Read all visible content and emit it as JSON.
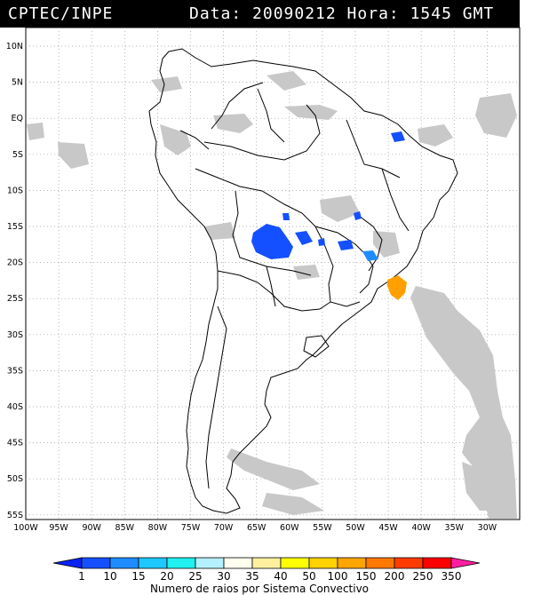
{
  "header": {
    "source": "CPTEC/INPE",
    "datetime": "Data: 20090212 Hora: 1545 GMT"
  },
  "map": {
    "lat_labels": [
      "10N",
      "5N",
      "EQ",
      "5S",
      "10S",
      "15S",
      "20S",
      "25S",
      "30S",
      "35S",
      "40S",
      "45S",
      "50S",
      "55S"
    ],
    "lon_labels": [
      "100W",
      "95W",
      "90W",
      "85W",
      "80W",
      "75W",
      "70W",
      "65W",
      "60W",
      "55W",
      "50W",
      "45W",
      "40W",
      "35W",
      "30W"
    ]
  },
  "colorbar": {
    "labels": [
      "1",
      "10",
      "15",
      "20",
      "25",
      "30",
      "35",
      "40",
      "50",
      "100",
      "150",
      "200",
      "250",
      "350"
    ],
    "colors": [
      "#0a23f5",
      "#1450ff",
      "#1e8cff",
      "#1ec8ff",
      "#20f0f0",
      "#b4f0ff",
      "#fffff0",
      "#fff0a0",
      "#ffff00",
      "#ffd200",
      "#ffa500",
      "#ff7800",
      "#ff3c00",
      "#ff0000",
      "#ff1ea0"
    ],
    "title": "Numero de raios por Sistema Convectivo"
  },
  "colors": {
    "cloud_gray": "#c8c8c8",
    "strike_blue": "#1450ff",
    "strike_orange": "#ffa000"
  }
}
